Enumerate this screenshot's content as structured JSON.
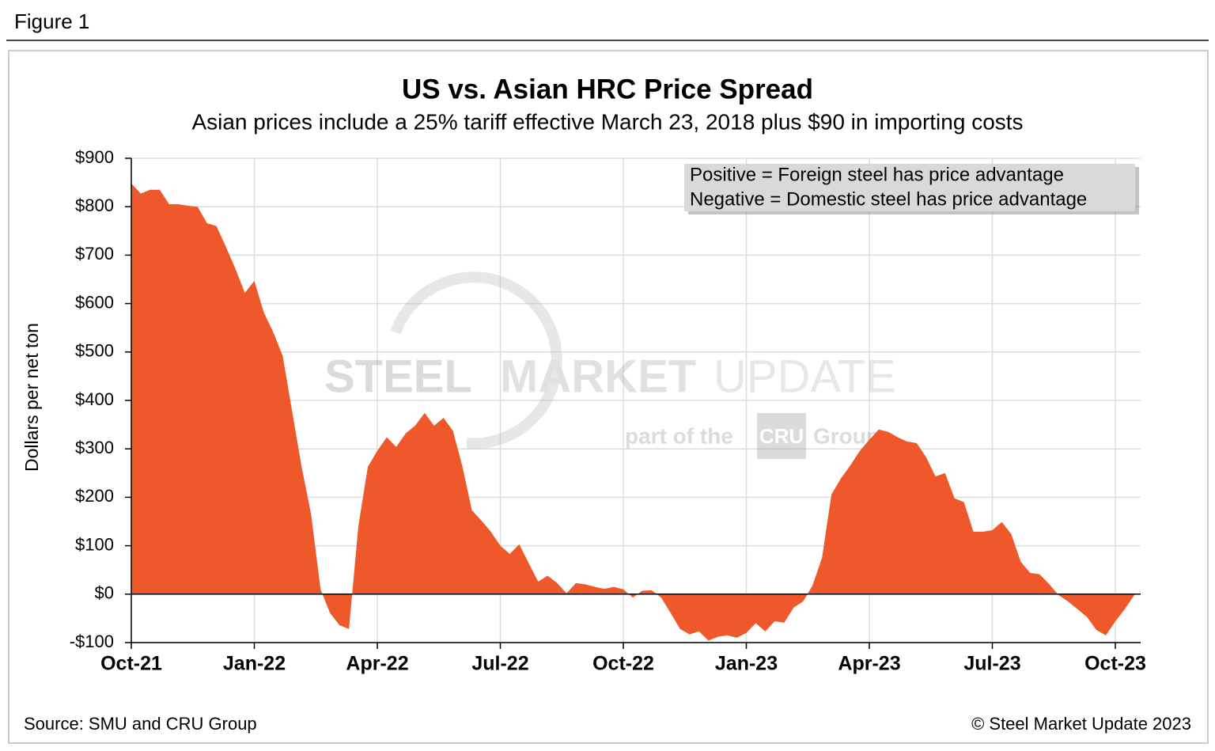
{
  "figure_label": "Figure 1",
  "chart_data": {
    "type": "area",
    "title": "US vs. Asian HRC Price Spread",
    "subtitle": "Asian prices include a 25% tariff effective March 23, 2018 plus $90 in importing costs",
    "y_label": "Dollars per net ton",
    "annotation": [
      "Positive = Foreign steel has price advantage",
      "Negative = Domestic steel has price advantage"
    ],
    "watermark": [
      "STEEL",
      "MARKET",
      "UPDATE",
      "part of the",
      "CRU",
      "Group"
    ],
    "source": "Source: SMU and CRU Group",
    "copyright": "© Steel Market Update 2023",
    "color": "#ee582a",
    "grid": true,
    "ylim": [
      -100,
      900
    ],
    "yticks": [
      {
        "value": -100,
        "label": "-$100"
      },
      {
        "value": 0,
        "label": "$0"
      },
      {
        "value": 100,
        "label": "$100"
      },
      {
        "value": 200,
        "label": "$200"
      },
      {
        "value": 300,
        "label": "$300"
      },
      {
        "value": 400,
        "label": "$400"
      },
      {
        "value": 500,
        "label": "$500"
      },
      {
        "value": 600,
        "label": "$600"
      },
      {
        "value": 700,
        "label": "$700"
      },
      {
        "value": 800,
        "label": "$800"
      },
      {
        "value": 900,
        "label": "$900"
      }
    ],
    "categories": [
      "Oct-21",
      null,
      null,
      null,
      null,
      null,
      null,
      null,
      null,
      null,
      null,
      null,
      null,
      "Jan-22",
      null,
      null,
      null,
      null,
      null,
      null,
      null,
      null,
      null,
      null,
      null,
      null,
      "Apr-22",
      null,
      null,
      null,
      null,
      null,
      null,
      null,
      null,
      null,
      null,
      null,
      null,
      "Jul-22",
      null,
      null,
      null,
      null,
      null,
      null,
      null,
      null,
      null,
      null,
      null,
      null,
      "Oct-22",
      null,
      null,
      null,
      null,
      null,
      null,
      null,
      null,
      null,
      null,
      null,
      null,
      "Jan-23",
      null,
      null,
      null,
      null,
      null,
      null,
      null,
      null,
      null,
      null,
      null,
      null,
      "Apr-23",
      null,
      null,
      null,
      null,
      null,
      null,
      null,
      null,
      null,
      null,
      null,
      null,
      "Jul-23",
      null,
      null,
      null,
      null,
      null,
      null,
      null,
      null,
      null,
      null,
      null,
      null,
      "Oct-23",
      null,
      null
    ],
    "values": [
      848,
      827,
      835,
      835,
      805,
      805,
      802,
      800,
      766,
      760,
      717,
      672,
      622,
      647,
      582,
      541,
      492,
      377,
      263,
      165,
      10,
      -39,
      -64,
      -72,
      141,
      263,
      296,
      324,
      304,
      332,
      348,
      374,
      348,
      364,
      337,
      263,
      173,
      152,
      129,
      100,
      83,
      103,
      64,
      26,
      38,
      23,
      2,
      23,
      20,
      15,
      11,
      15,
      10,
      -7,
      7,
      8,
      -7,
      -39,
      -72,
      -83,
      -77,
      -96,
      -88,
      -85,
      -90,
      -80,
      -60,
      -77,
      -56,
      -59,
      -28,
      -15,
      18,
      75,
      206,
      239,
      266,
      296,
      319,
      340,
      335,
      324,
      315,
      312,
      283,
      243,
      250,
      198,
      190,
      129,
      129,
      132,
      149,
      124,
      67,
      44,
      41,
      21,
      -2,
      -15,
      -31,
      -47,
      -74,
      -85,
      -56,
      -31,
      -2
    ]
  }
}
